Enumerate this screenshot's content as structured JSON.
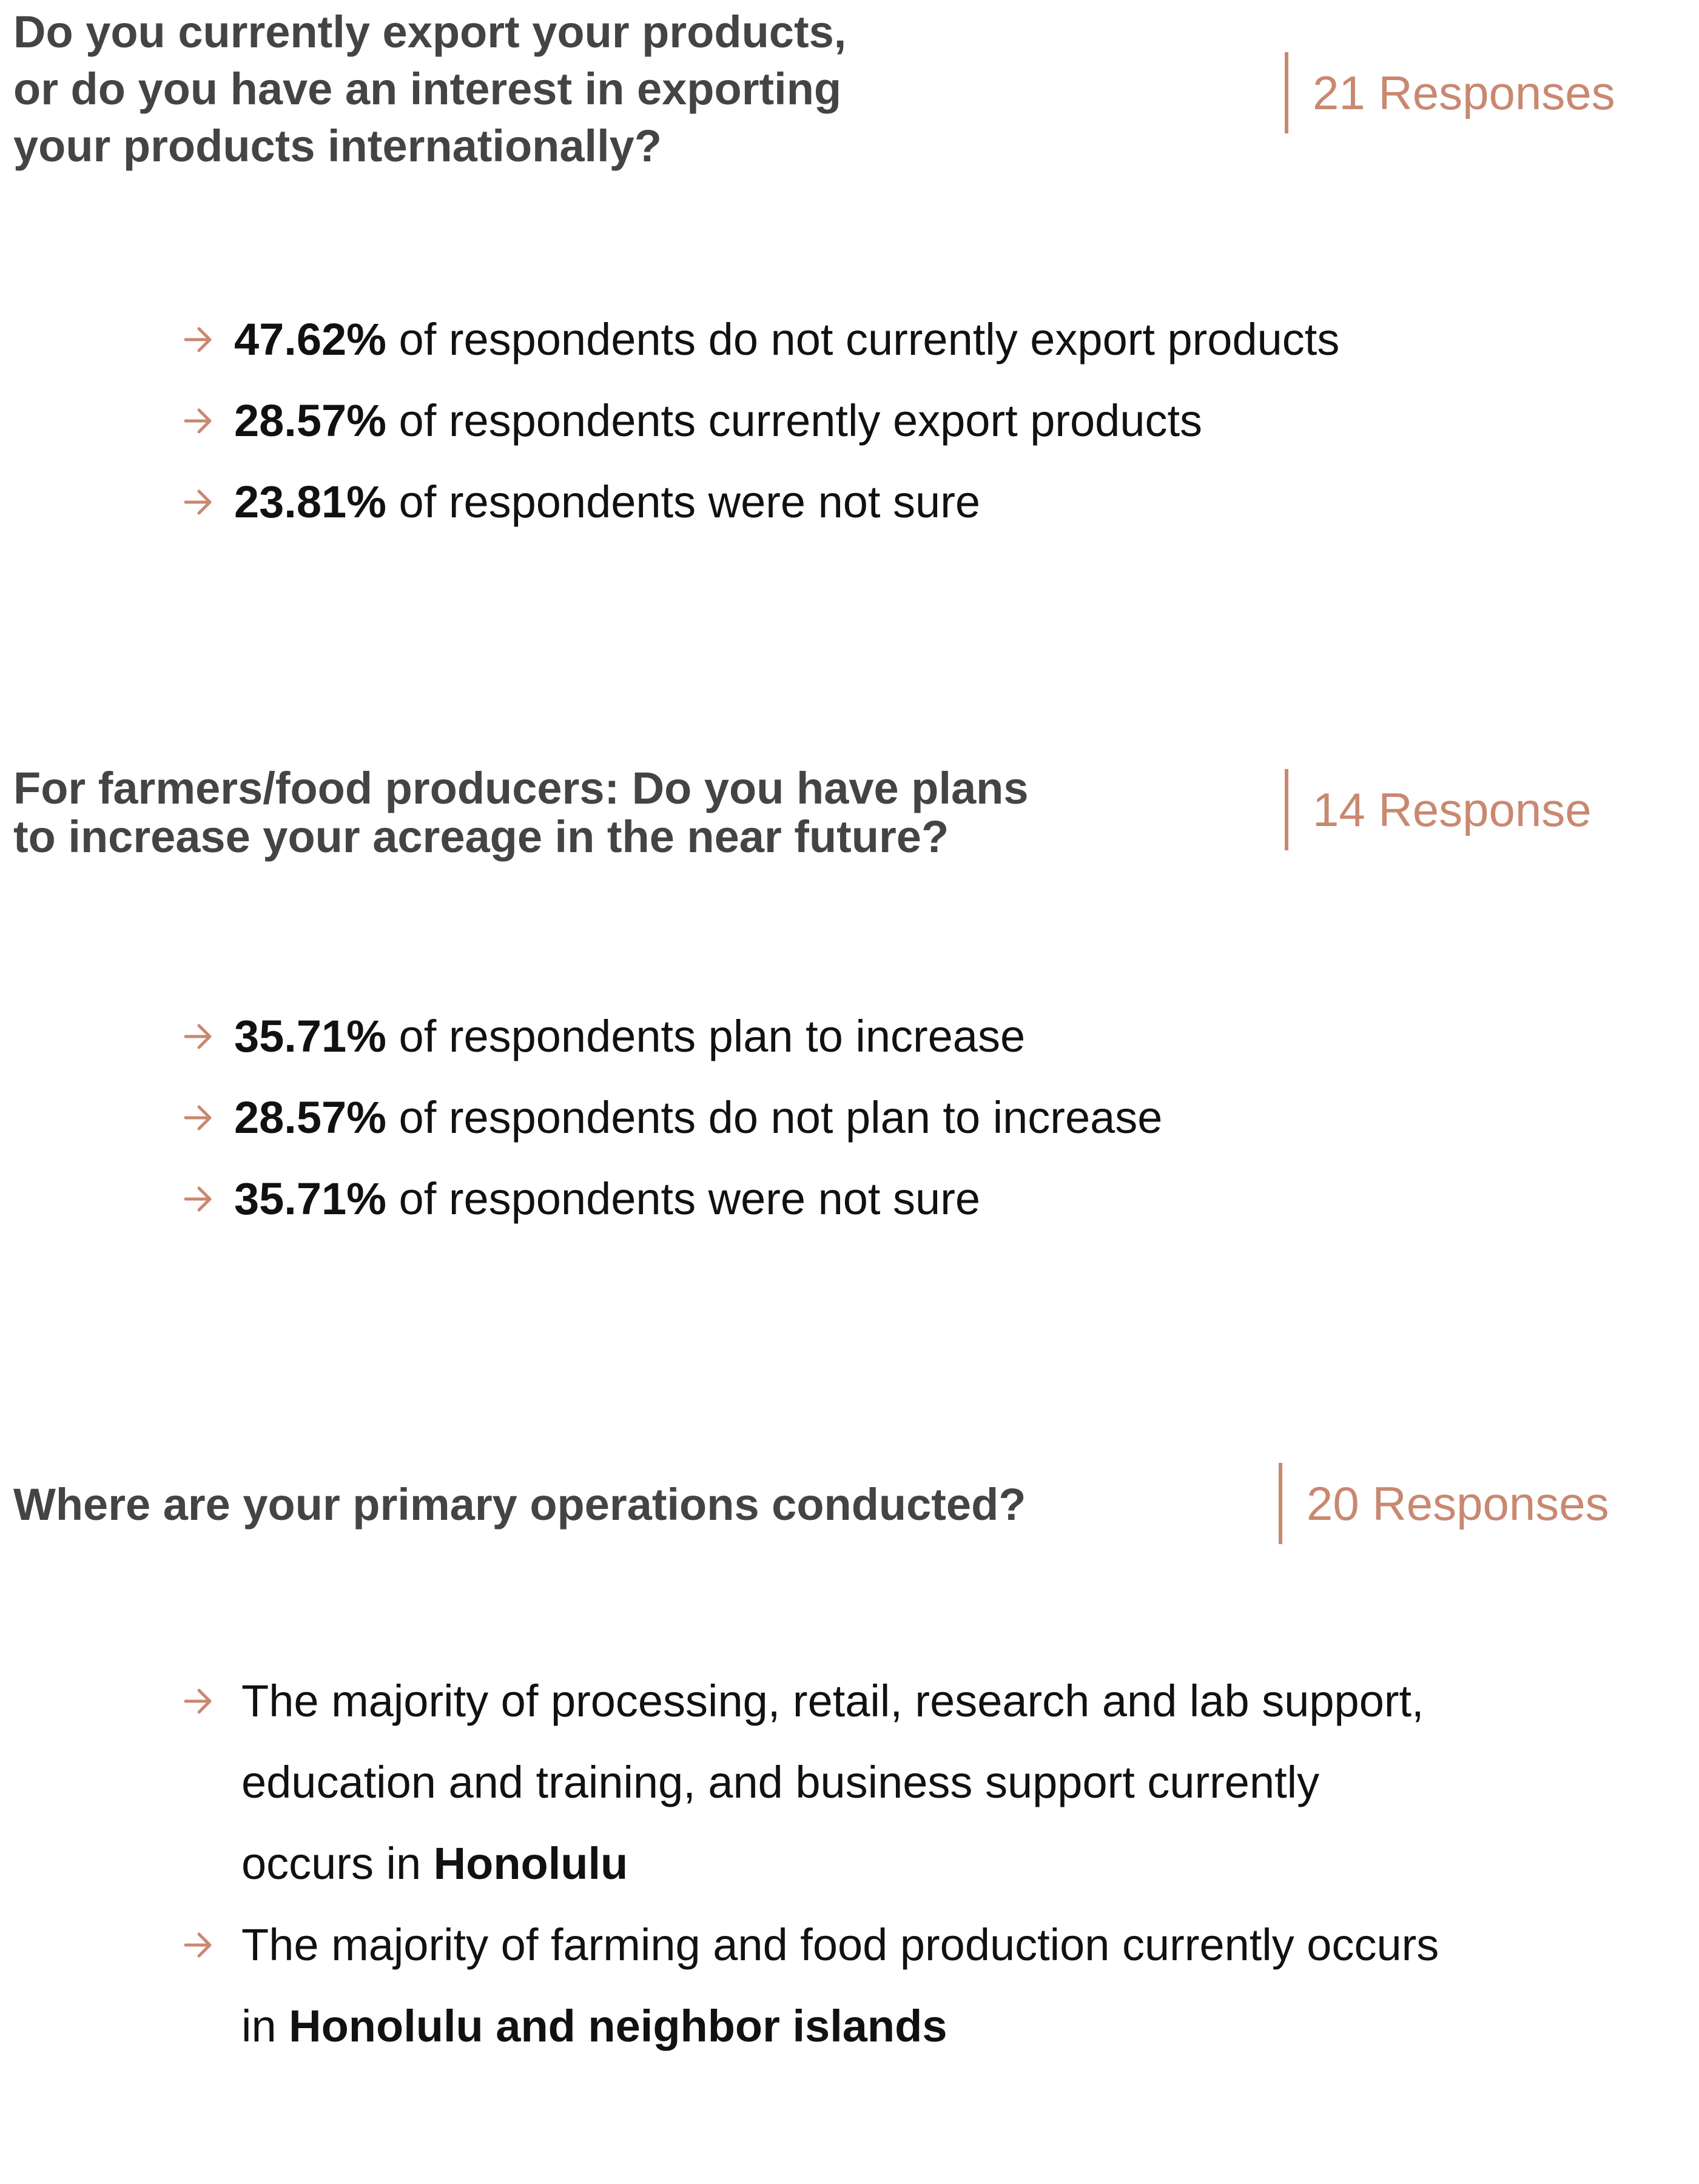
{
  "colors": {
    "accent": "#c98870",
    "question_text": "#444444",
    "body_text": "#111111"
  },
  "arrow_icon": "right-arrow-icon",
  "sections": [
    {
      "question": "Do you currently export your products,\nor do you have an interest in exporting\nyour products internationally?",
      "responses": "21 Responses",
      "bullets": [
        {
          "value": "47.62%",
          "text": " of respondents do not currently export products"
        },
        {
          "value": "28.57%",
          "text": " of respondents currently export products"
        },
        {
          "value": "23.81%",
          "text": " of respondents were not sure"
        }
      ]
    },
    {
      "question": "For farmers/food producers: Do you have plans\nto increase your acreage in the near future?",
      "responses": "14 Response",
      "bullets": [
        {
          "value": "35.71%",
          "text": " of respondents plan to increase"
        },
        {
          "value": "28.57%",
          "text": " of respondents do not plan to increase"
        },
        {
          "value": "35.71%",
          "text": " of respondents were not sure"
        }
      ]
    },
    {
      "question": "Where are your primary operations conducted?",
      "responses": "20 Responses",
      "bullets": [
        {
          "lead": "The majority of processing, retail, research and lab support, education and training, and business support currently occurs in ",
          "strong": "Honolulu"
        },
        {
          "lead": "The majority of farming and food production currently occurs in ",
          "strong": "Honolulu and neighbor islands"
        }
      ]
    }
  ]
}
